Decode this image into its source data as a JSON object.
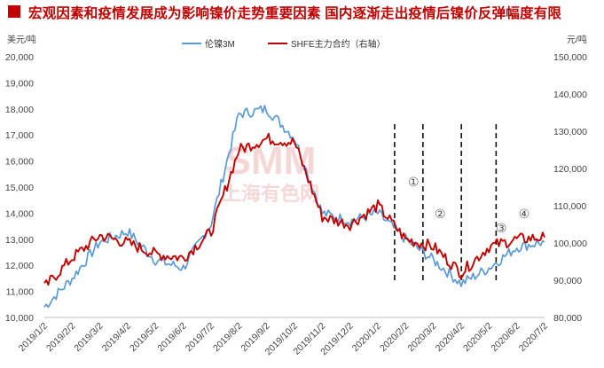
{
  "chart_data": {
    "type": "line",
    "title": "宏观因素和疫情发展成为影响镍价走势重要因素 国内逐渐走出疫情后镍价反弹幅度有限",
    "ylabel_left": "美元/吨",
    "ylabel_right": "元/吨",
    "ylim_left": [
      10000,
      20000
    ],
    "ylim_right": [
      80000,
      150000
    ],
    "yticks_left": [
      "10,000",
      "11,000",
      "12,000",
      "13,000",
      "14,000",
      "15,000",
      "16,000",
      "17,000",
      "18,000",
      "19,000",
      "20,000"
    ],
    "yticks_right": [
      "80,000",
      "90,000",
      "100,000",
      "110,000",
      "120,000",
      "130,000",
      "140,000",
      "150,000"
    ],
    "categories": [
      "2019/1/2",
      "2019/2/2",
      "2019/3/2",
      "2019/4/2",
      "2019/5/2",
      "2019/6/2",
      "2019/7/2",
      "2019/8/2",
      "2019/9/2",
      "2019/10/2",
      "2019/11/2",
      "2019/12/2",
      "2020/1/2",
      "2020/2/2",
      "2020/3/2",
      "2020/4/2",
      "2020/5/2",
      "2020/6/2",
      "2020/7/2"
    ],
    "legend_position": "top-center",
    "grid": false,
    "series": [
      {
        "name": "伦镍3M",
        "axis": "left",
        "color": "#5b9bd5",
        "values": [
          10400,
          11500,
          12900,
          13300,
          12200,
          11900,
          13600,
          17800,
          18000,
          16900,
          14000,
          13700,
          14000,
          13000,
          12200,
          11300,
          11900,
          12700,
          12900
        ]
      },
      {
        "name": "SHFE主力合约（右轴）",
        "axis": "right",
        "color": "#c00000",
        "values": [
          88000,
          96000,
          102000,
          100000,
          97000,
          96000,
          103000,
          125000,
          128000,
          127000,
          107000,
          105000,
          110000,
          101000,
          99000,
          92000,
          99000,
          101000,
          101500
        ]
      }
    ],
    "annotations": [
      {
        "label": "①",
        "date": "2020/2/2"
      },
      {
        "label": "②",
        "date": "2020/3/2"
      },
      {
        "label": "③",
        "date": "2020/5/2"
      },
      {
        "label": "④",
        "date": "2020/6/2"
      }
    ],
    "event_lines": [
      "2020/1/20",
      "2020/2/20",
      "2020/4/2",
      "2020/5/10"
    ]
  },
  "watermark": {
    "logo": "SMM",
    "text": "上海有色网"
  }
}
